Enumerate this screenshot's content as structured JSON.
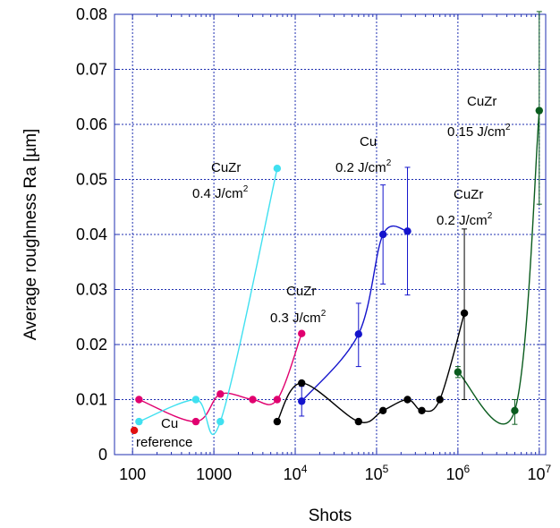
{
  "chart_data": {
    "type": "scatter",
    "title": "",
    "xlabel": "Shots",
    "ylabel": "Average roughness Ra [µm]",
    "x_scale": "log",
    "xlim": [
      60,
      12000000
    ],
    "ylim": [
      0,
      0.08
    ],
    "grid": true,
    "x_ticks": [
      {
        "value": 100,
        "base": "100",
        "exp": ""
      },
      {
        "value": 1000,
        "base": "1000",
        "exp": ""
      },
      {
        "value": 10000,
        "base": "10",
        "exp": "4"
      },
      {
        "value": 100000,
        "base": "10",
        "exp": "5"
      },
      {
        "value": 1000000,
        "base": "10",
        "exp": "6"
      },
      {
        "value": 10000000,
        "base": "10",
        "exp": "7"
      }
    ],
    "y_ticks": [
      "0",
      "0.01",
      "0.02",
      "0.03",
      "0.04",
      "0.05",
      "0.06",
      "0.07",
      "0.08"
    ],
    "colors": {
      "grid": "#1f2fb0",
      "frame": "#1f2fb0"
    },
    "series": [
      {
        "color": "#e0006f",
        "x": [
          120,
          600,
          1200,
          3000,
          6000,
          12000
        ],
        "y": [
          0.01,
          0.006,
          0.011,
          0.01,
          0.01,
          0.022
        ]
      },
      {
        "color": "#40e0f0",
        "x": [
          120,
          600,
          1200,
          6000
        ],
        "y": [
          0.006,
          0.01,
          0.006,
          0.052
        ]
      },
      {
        "color": "#1414cc",
        "x": [
          12000,
          60000,
          120000,
          240000
        ],
        "y": [
          0.0097,
          0.0219,
          0.04,
          0.0406
        ],
        "err_low": [
          0.0027,
          0.0059,
          0.009,
          0.0116
        ],
        "err_high": [
          0.0027,
          0.0056,
          0.009,
          0.0116
        ]
      },
      {
        "color": "#000000",
        "x": [
          6000,
          12000,
          60000,
          120000,
          240000,
          360000,
          600000,
          1200000
        ],
        "y": [
          0.006,
          0.013,
          0.006,
          0.008,
          0.01,
          0.008,
          0.01,
          0.0257
        ],
        "err_low": [
          0,
          0,
          0,
          0,
          0,
          0,
          0,
          0.0157
        ],
        "err_high": [
          0,
          0,
          0,
          0,
          0,
          0,
          0,
          0.0153
        ]
      },
      {
        "color": "#0a5c1e",
        "x": [
          1000000,
          5000000,
          10000000
        ],
        "y": [
          0.015,
          0.008,
          0.0625
        ],
        "err_low": [
          0.001,
          0.0025,
          0.017
        ],
        "err_high": [
          0.001,
          0.002,
          0.018
        ]
      },
      {
        "color": "#e21010",
        "x": [
          105
        ],
        "y": [
          0.0044
        ]
      }
    ],
    "annotations": [
      {
        "text": "CuZr",
        "sup": ""
      },
      {
        "text": "0.4 J/cm",
        "sup": "2"
      },
      {
        "text": "CuZr",
        "sup": ""
      },
      {
        "text": "0.3 J/cm",
        "sup": "2"
      },
      {
        "text": "Cu",
        "sup": ""
      },
      {
        "text": "0.2 J/cm",
        "sup": "2"
      },
      {
        "text": "CuZr",
        "sup": ""
      },
      {
        "text": "0.2 J/cm",
        "sup": "2"
      },
      {
        "text": "CuZr",
        "sup": ""
      },
      {
        "text": "0.15 J/cm",
        "sup": "2"
      },
      {
        "text": "Cu",
        "sup": ""
      },
      {
        "text": "reference",
        "sup": ""
      }
    ]
  }
}
